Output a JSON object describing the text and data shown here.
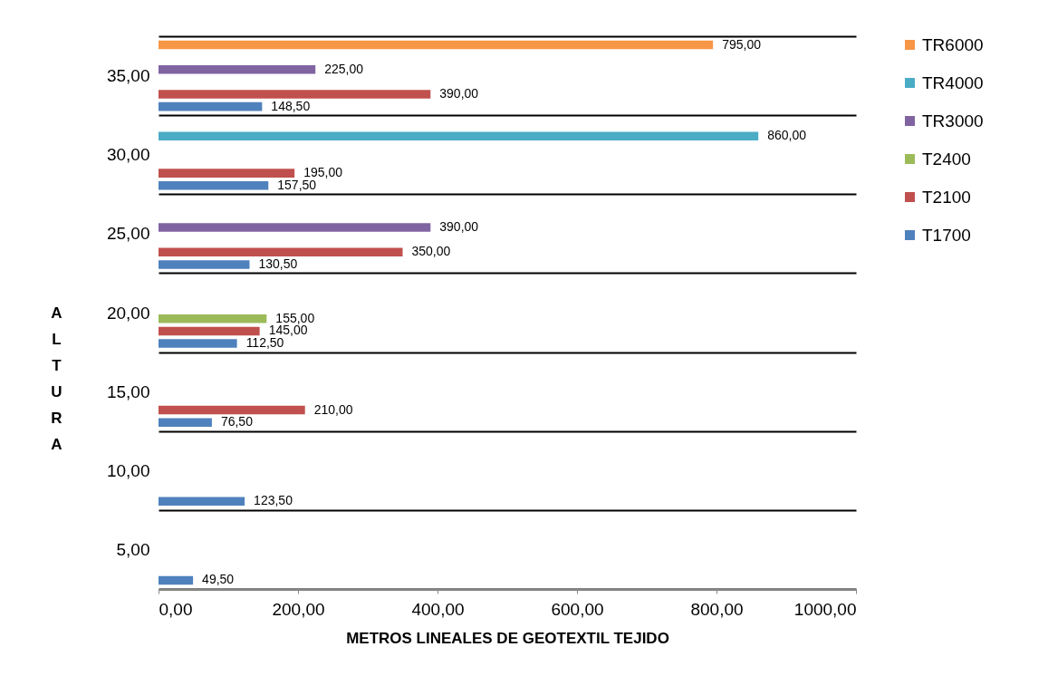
{
  "chart_data": {
    "type": "bar",
    "orientation": "horizontal",
    "xlabel": "METROS LINEALES DE GEOTEXTIL TEJIDO",
    "ylabel": "ALTURA",
    "categories": [
      "35,00",
      "30,00",
      "25,00",
      "20,00",
      "15,00",
      "10,00",
      "5,00"
    ],
    "series": [
      {
        "name": "T1700",
        "color": "#4f81bd",
        "values": [
          148.5,
          157.5,
          130.5,
          112.5,
          76.5,
          123.5,
          49.5
        ],
        "value_labels": [
          "148,50",
          "157,50",
          "130,50",
          "112,50",
          "76,50",
          "123,50",
          "49,50"
        ]
      },
      {
        "name": "T2100",
        "color": "#c0504d",
        "values": [
          390,
          195,
          350,
          145,
          210,
          null,
          null
        ],
        "value_labels": [
          "390,00",
          "195,00",
          "350,00",
          "145,00",
          "210,00",
          null,
          null
        ]
      },
      {
        "name": "T2400",
        "color": "#9bbb59",
        "values": [
          null,
          null,
          null,
          155,
          null,
          null,
          null
        ],
        "value_labels": [
          null,
          null,
          null,
          "155,00",
          null,
          null,
          null
        ]
      },
      {
        "name": "TR3000",
        "color": "#8064a2",
        "values": [
          225,
          null,
          390,
          null,
          null,
          null,
          null
        ],
        "value_labels": [
          "225,00",
          null,
          "390,00",
          null,
          null,
          null,
          null
        ]
      },
      {
        "name": "TR4000",
        "color": "#4bacc6",
        "values": [
          null,
          860,
          null,
          null,
          null,
          null,
          null
        ],
        "value_labels": [
          null,
          "860,00",
          null,
          null,
          null,
          null,
          null
        ]
      },
      {
        "name": "TR6000",
        "color": "#f79646",
        "values": [
          795,
          null,
          null,
          null,
          null,
          null,
          null
        ],
        "value_labels": [
          "795,00",
          null,
          null,
          null,
          null,
          null,
          null
        ]
      }
    ],
    "xlim": [
      0,
      1000
    ],
    "xticks": [
      {
        "value": 0,
        "label": "0,00"
      },
      {
        "value": 200,
        "label": "200,00"
      },
      {
        "value": 400,
        "label": "400,00"
      },
      {
        "value": 600,
        "label": "600,00"
      },
      {
        "value": 800,
        "label": "800,00"
      },
      {
        "value": 1000,
        "label": "1000,00"
      }
    ],
    "grid": "y",
    "legend": "right"
  }
}
